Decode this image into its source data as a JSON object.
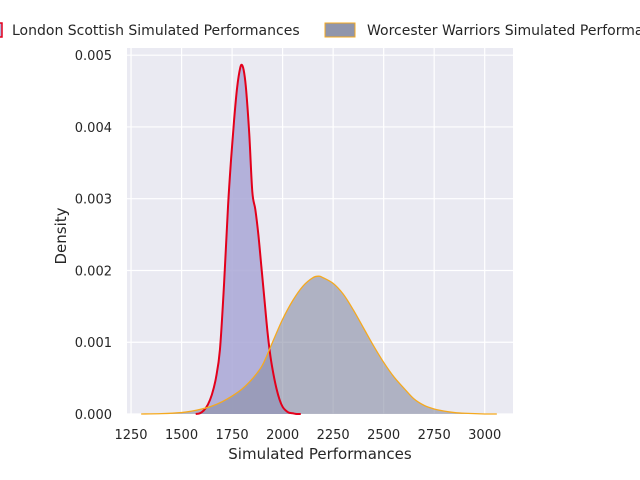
{
  "chart_data": {
    "type": "area",
    "title": "",
    "xlabel": "Simulated Performances",
    "ylabel": "Density",
    "xlim": [
      1230,
      3140
    ],
    "ylim": [
      0,
      0.0051
    ],
    "xticks": [
      1250,
      1500,
      1750,
      2000,
      2250,
      2500,
      2750,
      3000
    ],
    "yticks": [
      0.0,
      0.001,
      0.002,
      0.003,
      0.004,
      0.005
    ],
    "xtick_labels": [
      "1250",
      "1500",
      "1750",
      "2000",
      "2250",
      "2500",
      "2750",
      "3000"
    ],
    "ytick_labels": [
      "0.000",
      "0.001",
      "0.002",
      "0.003",
      "0.004",
      "0.005"
    ],
    "grid": true,
    "legend_position": "top (two columns, cut off at the edges)",
    "colors": {
      "background": "#eaeaf2",
      "grid": "#ffffff",
      "london_line": "#e3001b",
      "london_fill": "#a9a7d6",
      "worcester_line": "#f5a91f",
      "worcester_fill": "#8a8fa6"
    },
    "series": [
      {
        "name": "London Scottish Simulated Performances",
        "kind": "kde",
        "x": [
          1570,
          1590,
          1610,
          1630,
          1650,
          1670,
          1690,
          1710,
          1730,
          1745,
          1760,
          1775,
          1790,
          1800,
          1810,
          1820,
          1835,
          1850,
          1865,
          1880,
          1895,
          1910,
          1925,
          1940,
          1955,
          1970,
          1985,
          2000,
          2015,
          2030,
          2050,
          2070,
          2090
        ],
        "y": [
          0.0,
          1e-05,
          5e-05,
          0.00013,
          0.00027,
          0.0005,
          0.0009,
          0.0018,
          0.0029,
          0.00355,
          0.0041,
          0.00455,
          0.00482,
          0.00486,
          0.00475,
          0.0045,
          0.0039,
          0.0031,
          0.00285,
          0.0025,
          0.00205,
          0.0016,
          0.00115,
          0.0008,
          0.00055,
          0.00035,
          0.0002,
          0.0001,
          5e-05,
          2e-05,
          1e-05,
          0.0,
          0.0
        ]
      },
      {
        "name": "Worcester Warriors Simulated Performances",
        "kind": "kde",
        "x": [
          1300,
          1400,
          1500,
          1550,
          1600,
          1650,
          1700,
          1750,
          1800,
          1850,
          1900,
          1950,
          2000,
          2050,
          2100,
          2150,
          2180,
          2200,
          2250,
          2300,
          2350,
          2400,
          2450,
          2500,
          2550,
          2600,
          2650,
          2700,
          2750,
          2800,
          2850,
          2900,
          3000,
          3060
        ],
        "y": [
          0.0,
          5e-06,
          2e-05,
          4e-05,
          7e-05,
          0.00011,
          0.00017,
          0.00025,
          0.00035,
          0.00049,
          0.00068,
          0.001,
          0.00132,
          0.00158,
          0.00178,
          0.0019,
          0.00192,
          0.0019,
          0.00182,
          0.00167,
          0.00145,
          0.0012,
          0.00095,
          0.00072,
          0.00052,
          0.00036,
          0.00021,
          0.00012,
          7e-05,
          4e-05,
          2e-05,
          1e-05,
          0.0,
          0.0
        ]
      }
    ]
  }
}
